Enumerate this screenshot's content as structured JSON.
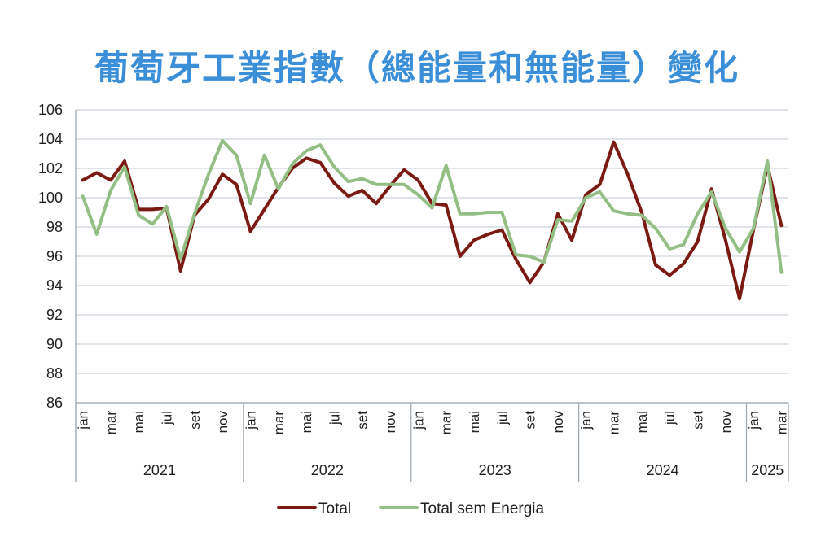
{
  "title": "葡萄牙工業指數（總能量和無能量）變化",
  "chart_data": {
    "type": "line",
    "title": "葡萄牙工業指數（總能量和無能量）變化",
    "ylim": [
      86,
      106
    ],
    "yticks": [
      86,
      88,
      90,
      92,
      94,
      96,
      98,
      100,
      102,
      104,
      106
    ],
    "grid": true,
    "legend": "bottom",
    "x": [
      "2021-01",
      "2021-02",
      "2021-03",
      "2021-04",
      "2021-05",
      "2021-06",
      "2021-07",
      "2021-08",
      "2021-09",
      "2021-10",
      "2021-11",
      "2021-12",
      "2022-01",
      "2022-02",
      "2022-03",
      "2022-04",
      "2022-05",
      "2022-06",
      "2022-07",
      "2022-08",
      "2022-09",
      "2022-10",
      "2022-11",
      "2022-12",
      "2023-01",
      "2023-02",
      "2023-03",
      "2023-04",
      "2023-05",
      "2023-06",
      "2023-07",
      "2023-08",
      "2023-09",
      "2023-10",
      "2023-11",
      "2023-12",
      "2024-01",
      "2024-02",
      "2024-03",
      "2024-04",
      "2024-05",
      "2024-06",
      "2024-07",
      "2024-08",
      "2024-09",
      "2024-10",
      "2024-11",
      "2024-12",
      "2025-01",
      "2025-02",
      "2025-03"
    ],
    "month_labels": [
      "jan",
      "mar",
      "mai",
      "jul",
      "set",
      "nov"
    ],
    "label_months": [
      0,
      2,
      4,
      6,
      8,
      10
    ],
    "years": [
      "2021",
      "2022",
      "2023",
      "2024",
      "2025"
    ],
    "series": [
      {
        "name": "Total",
        "color": "#7a1a12",
        "values": [
          101.2,
          101.7,
          101.2,
          102.5,
          99.2,
          99.2,
          99.3,
          95.0,
          98.8,
          99.9,
          101.6,
          100.9,
          97.7,
          99.2,
          100.7,
          102.0,
          102.7,
          102.4,
          101.0,
          100.1,
          100.5,
          99.6,
          100.8,
          101.9,
          101.2,
          99.6,
          99.5,
          96.0,
          97.1,
          97.5,
          97.8,
          95.8,
          94.2,
          95.6,
          98.9,
          97.1,
          100.2,
          100.9,
          103.8,
          101.6,
          99.0,
          95.4,
          94.7,
          95.5,
          97.0,
          100.6,
          97.1,
          93.1,
          97.8,
          102.2,
          98.1
        ]
      },
      {
        "name": "Total sem Energia",
        "color": "#93bf85",
        "values": [
          100.1,
          97.5,
          100.5,
          102.1,
          98.8,
          98.2,
          99.4,
          95.8,
          98.9,
          101.6,
          103.9,
          102.9,
          99.6,
          102.9,
          100.6,
          102.3,
          103.2,
          103.6,
          102.1,
          101.1,
          101.3,
          100.9,
          100.9,
          100.9,
          100.2,
          99.3,
          102.2,
          98.9,
          98.9,
          99.0,
          99.0,
          96.1,
          96.0,
          95.6,
          98.5,
          98.4,
          100.0,
          100.4,
          99.1,
          98.9,
          98.8,
          97.9,
          96.5,
          96.8,
          98.9,
          100.4,
          97.9,
          96.3,
          97.9,
          102.5,
          94.9
        ]
      }
    ]
  }
}
